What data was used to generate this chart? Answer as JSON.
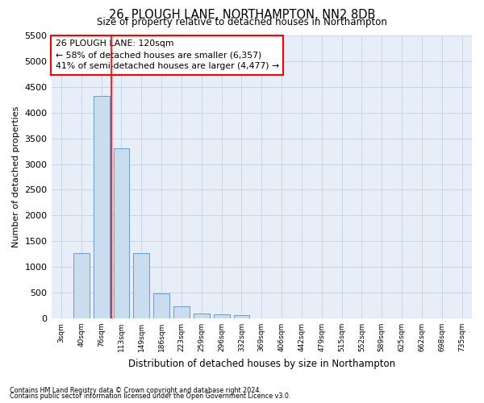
{
  "title_line1": "26, PLOUGH LANE, NORTHAMPTON, NN2 8DB",
  "title_line2": "Size of property relative to detached houses in Northampton",
  "xlabel": "Distribution of detached houses by size in Northampton",
  "ylabel": "Number of detached properties",
  "categories": [
    "3sqm",
    "40sqm",
    "76sqm",
    "113sqm",
    "149sqm",
    "186sqm",
    "223sqm",
    "259sqm",
    "296sqm",
    "332sqm",
    "369sqm",
    "406sqm",
    "442sqm",
    "479sqm",
    "515sqm",
    "552sqm",
    "589sqm",
    "625sqm",
    "662sqm",
    "698sqm",
    "735sqm"
  ],
  "values": [
    0,
    1265,
    4330,
    3300,
    1275,
    490,
    230,
    95,
    70,
    55,
    0,
    0,
    0,
    0,
    0,
    0,
    0,
    0,
    0,
    0,
    0
  ],
  "bar_color": "#c9ddef",
  "bar_edge_color": "#5b8fc7",
  "grid_color": "#c8d4e8",
  "background_color": "#e8eef8",
  "annotation_title": "26 PLOUGH LANE: 120sqm",
  "annotation_line1": "← 58% of detached houses are smaller (6,357)",
  "annotation_line2": "41% of semi-detached houses are larger (4,477) →",
  "red_line_x": 2.5,
  "ylim": [
    0,
    5500
  ],
  "yticks": [
    0,
    500,
    1000,
    1500,
    2000,
    2500,
    3000,
    3500,
    4000,
    4500,
    5000,
    5500
  ],
  "footer_line1": "Contains HM Land Registry data © Crown copyright and database right 2024.",
  "footer_line2": "Contains public sector information licensed under the Open Government Licence v3.0."
}
